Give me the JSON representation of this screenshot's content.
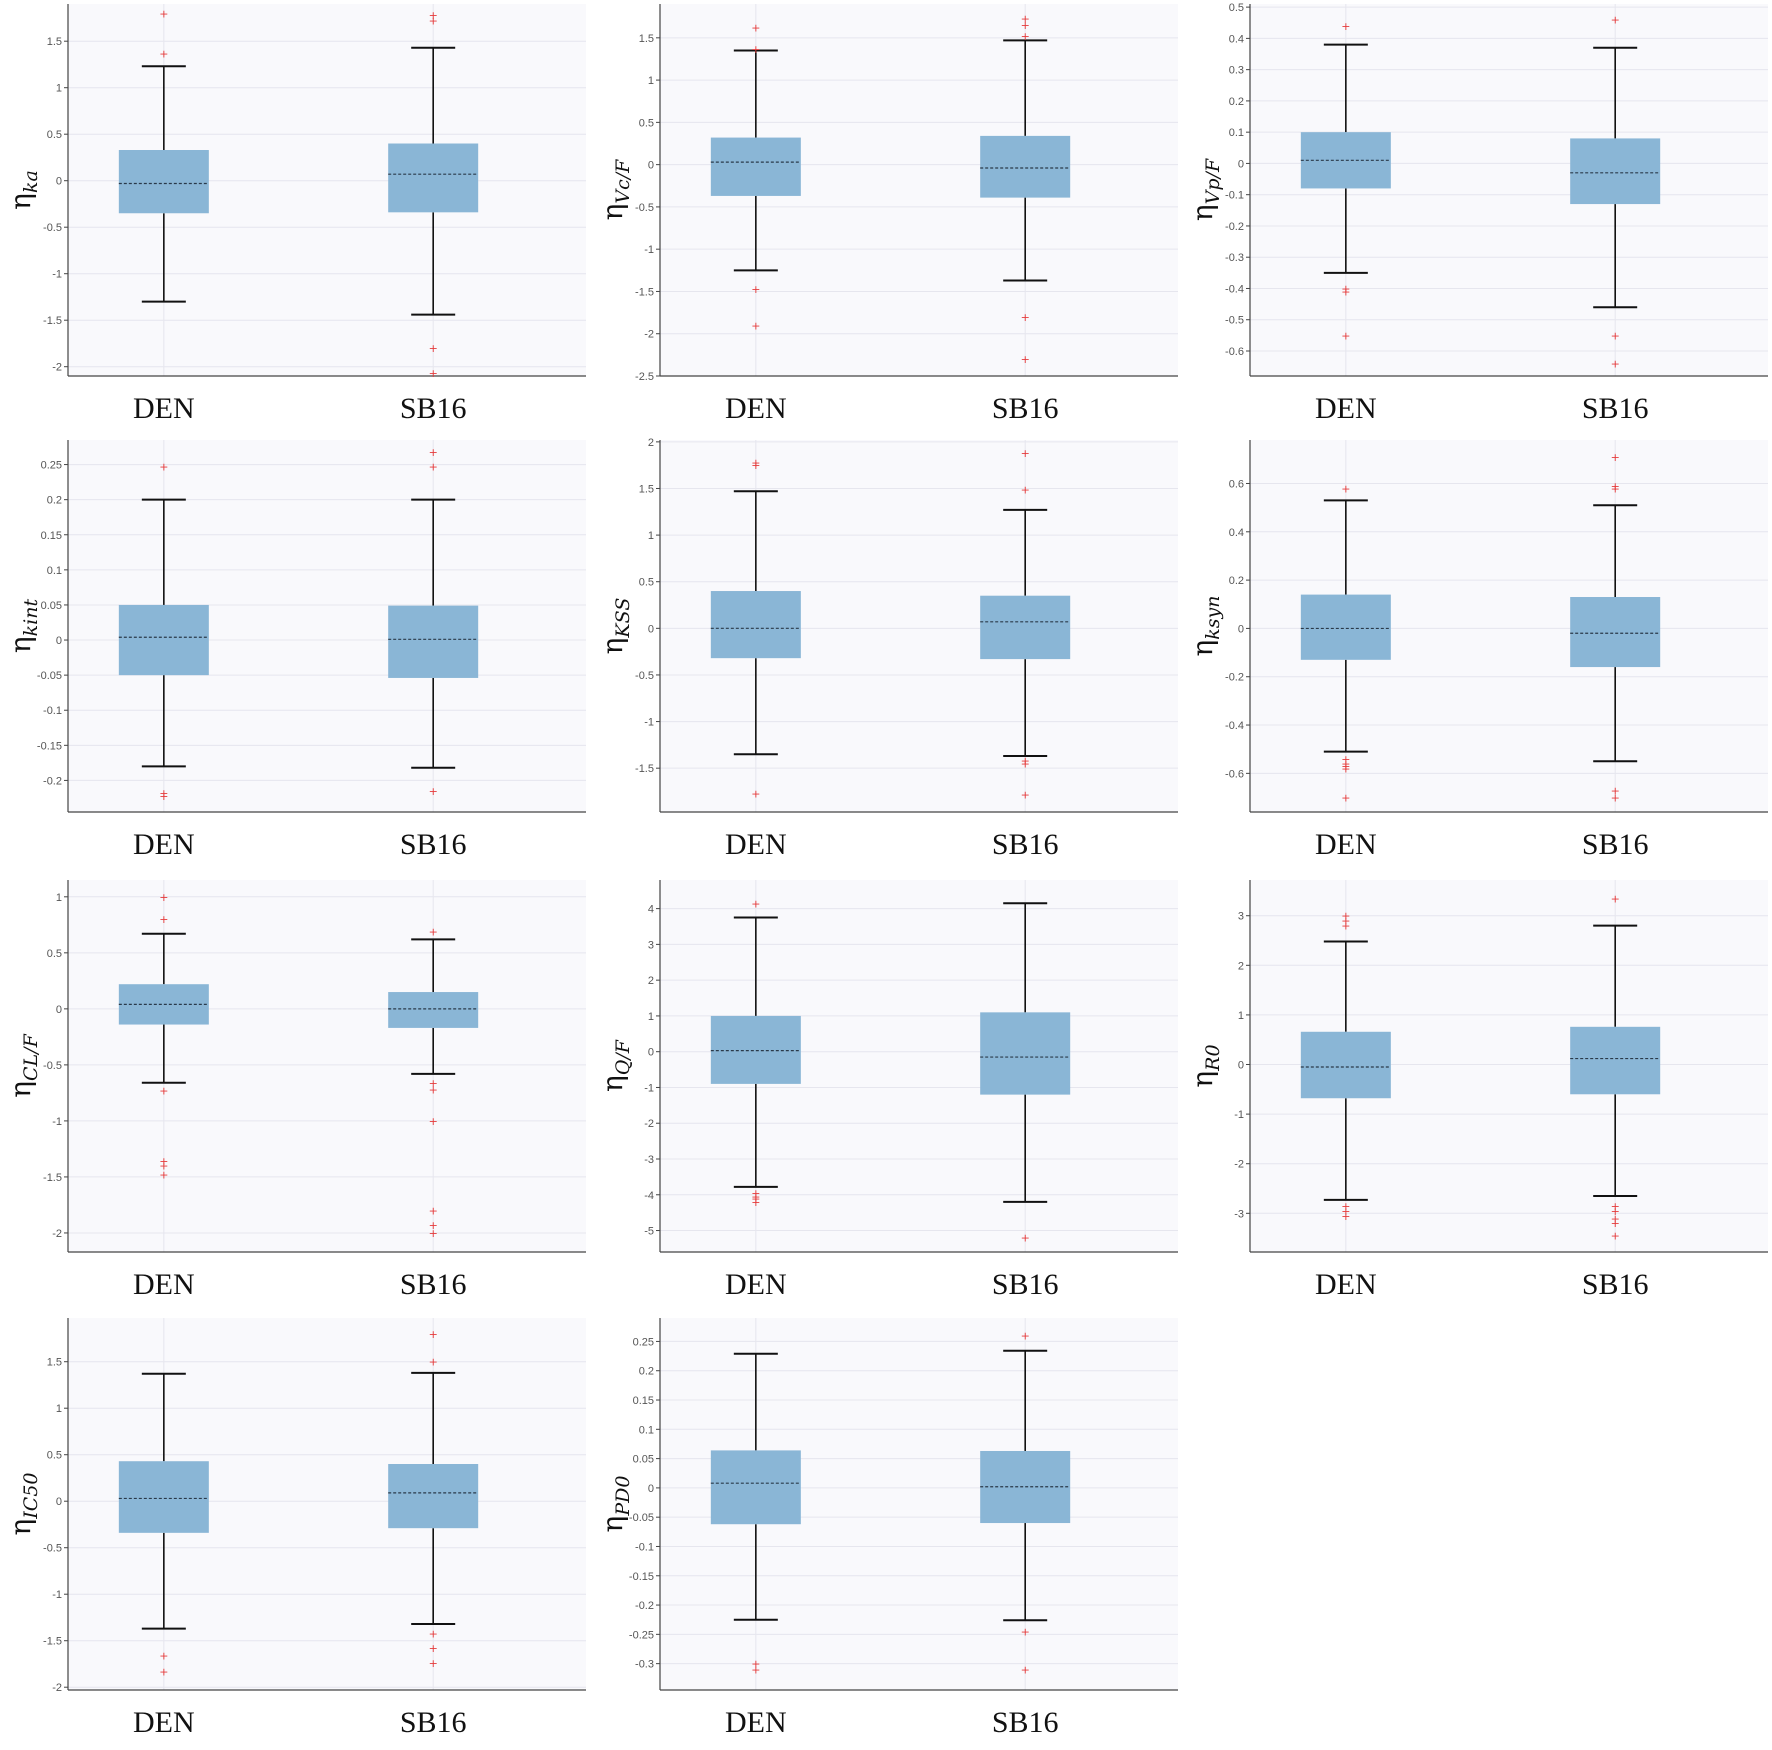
{
  "chart_data": [
    {
      "type": "box",
      "ylabel_base": "η",
      "ylabel_sub": "ka",
      "ticks": [
        -2,
        -1.5,
        -1,
        -0.5,
        0,
        0.5,
        1,
        1.5
      ],
      "ylim": [
        -2.1,
        1.9
      ],
      "categories": [
        "DEN",
        "SB16"
      ],
      "boxes": [
        {
          "whisker_low": -1.3,
          "q1": -0.35,
          "median": -0.03,
          "q3": 0.33,
          "whisker_high": 1.23,
          "outliers": [
            1.37,
            1.8
          ]
        },
        {
          "whisker_low": -1.44,
          "q1": -0.34,
          "median": 0.07,
          "q3": 0.4,
          "whisker_high": 1.43,
          "outliers": [
            -1.8,
            -2.07,
            1.72,
            1.78
          ]
        }
      ]
    },
    {
      "type": "box",
      "ylabel_base": "η",
      "ylabel_sub": "Vc/F",
      "ticks": [
        -2.5,
        -2,
        -1.5,
        -1,
        -0.5,
        0,
        0.5,
        1,
        1.5
      ],
      "ylim": [
        -2.5,
        1.9
      ],
      "categories": [
        "DEN",
        "SB16"
      ],
      "boxes": [
        {
          "whisker_low": -1.25,
          "q1": -0.37,
          "median": 0.03,
          "q3": 0.32,
          "whisker_high": 1.35,
          "outliers": [
            -1.47,
            -1.9,
            1.37,
            1.62
          ]
        },
        {
          "whisker_low": -1.37,
          "q1": -0.39,
          "median": -0.04,
          "q3": 0.34,
          "whisker_high": 1.47,
          "outliers": [
            -1.8,
            -2.3,
            1.52,
            1.65,
            1.73
          ]
        }
      ]
    },
    {
      "type": "box",
      "ylabel_base": "η",
      "ylabel_sub": "Vp/F",
      "ticks": [
        -0.6,
        -0.5,
        -0.4,
        -0.3,
        -0.2,
        -0.1,
        0,
        0.1,
        0.2,
        0.3,
        0.4,
        0.5
      ],
      "ylim": [
        -0.68,
        0.51
      ],
      "categories": [
        "DEN",
        "SB16"
      ],
      "boxes": [
        {
          "whisker_low": -0.35,
          "q1": -0.08,
          "median": 0.01,
          "q3": 0.1,
          "whisker_high": 0.38,
          "outliers": [
            -0.4,
            -0.41,
            -0.55,
            0.44
          ]
        },
        {
          "whisker_low": -0.46,
          "q1": -0.13,
          "median": -0.03,
          "q3": 0.08,
          "whisker_high": 0.37,
          "outliers": [
            -0.55,
            -0.64,
            0.46
          ]
        }
      ]
    },
    {
      "type": "box",
      "ylabel_base": "η",
      "ylabel_sub": "kint",
      "ticks": [
        -0.2,
        -0.15,
        -0.1,
        -0.05,
        0,
        0.05,
        0.1,
        0.15,
        0.2,
        0.25
      ],
      "ylim": [
        -0.245,
        0.285
      ],
      "categories": [
        "DEN",
        "SB16"
      ],
      "boxes": [
        {
          "whisker_low": -0.18,
          "q1": -0.05,
          "median": 0.004,
          "q3": 0.05,
          "whisker_high": 0.2,
          "outliers": [
            -0.218,
            -0.222,
            0.247
          ]
        },
        {
          "whisker_low": -0.182,
          "q1": -0.054,
          "median": 0.001,
          "q3": 0.049,
          "whisker_high": 0.2,
          "outliers": [
            -0.215,
            0.247,
            0.268
          ]
        }
      ]
    },
    {
      "type": "box",
      "ylabel_base": "η",
      "ylabel_sub": "KSS",
      "ticks": [
        -1.5,
        -1,
        -0.5,
        0,
        0.5,
        1,
        1.5,
        2
      ],
      "ylim": [
        -1.97,
        2.02
      ],
      "categories": [
        "DEN",
        "SB16"
      ],
      "boxes": [
        {
          "whisker_low": -1.35,
          "q1": -0.32,
          "median": 0.0,
          "q3": 0.4,
          "whisker_high": 1.47,
          "outliers": [
            -1.77,
            1.75,
            1.78
          ]
        },
        {
          "whisker_low": -1.37,
          "q1": -0.33,
          "median": 0.07,
          "q3": 0.35,
          "whisker_high": 1.27,
          "outliers": [
            -1.42,
            -1.45,
            -1.78,
            1.49,
            1.88
          ]
        }
      ]
    },
    {
      "type": "box",
      "ylabel_base": "η",
      "ylabel_sub": "ksyn",
      "ticks": [
        -0.6,
        -0.4,
        -0.2,
        0,
        0.2,
        0.4,
        0.6
      ],
      "ylim": [
        -0.76,
        0.78
      ],
      "categories": [
        "DEN",
        "SB16"
      ],
      "boxes": [
        {
          "whisker_low": -0.51,
          "q1": -0.13,
          "median": 0.0,
          "q3": 0.14,
          "whisker_high": 0.53,
          "outliers": [
            -0.54,
            -0.56,
            -0.57,
            -0.58,
            -0.7,
            0.58
          ]
        },
        {
          "whisker_low": -0.55,
          "q1": -0.16,
          "median": -0.02,
          "q3": 0.13,
          "whisker_high": 0.51,
          "outliers": [
            -0.67,
            -0.7,
            0.58,
            0.59,
            0.71
          ]
        }
      ]
    },
    {
      "type": "box",
      "ylabel_base": "η",
      "ylabel_sub": "CL/F",
      "ticks": [
        -2,
        -1.5,
        -1,
        -0.5,
        0,
        0.5,
        1
      ],
      "ylim": [
        -2.17,
        1.15
      ],
      "categories": [
        "DEN",
        "SB16"
      ],
      "boxes": [
        {
          "whisker_low": -0.66,
          "q1": -0.14,
          "median": 0.04,
          "q3": 0.22,
          "whisker_high": 0.67,
          "outliers": [
            -0.73,
            -1.36,
            -1.4,
            -1.48,
            0.8,
            1.0
          ]
        },
        {
          "whisker_low": -0.58,
          "q1": -0.17,
          "median": 0.0,
          "q3": 0.15,
          "whisker_high": 0.62,
          "outliers": [
            -0.66,
            -0.72,
            -1.0,
            -1.8,
            -1.93,
            -2.0,
            0.69
          ]
        }
      ]
    },
    {
      "type": "box",
      "ylabel_base": "η",
      "ylabel_sub": "Q/F",
      "ticks": [
        -5,
        -4,
        -3,
        -2,
        -1,
        0,
        1,
        2,
        3,
        4
      ],
      "ylim": [
        -5.6,
        4.8
      ],
      "categories": [
        "DEN",
        "SB16"
      ],
      "boxes": [
        {
          "whisker_low": -3.78,
          "q1": -0.9,
          "median": 0.03,
          "q3": 1.0,
          "whisker_high": 3.75,
          "outliers": [
            -3.95,
            -4.05,
            -4.1,
            -4.2,
            4.15
          ]
        },
        {
          "whisker_low": -4.2,
          "q1": -1.2,
          "median": -0.15,
          "q3": 1.1,
          "whisker_high": 4.15,
          "outliers": [
            -5.2
          ]
        }
      ]
    },
    {
      "type": "box",
      "ylabel_base": "η",
      "ylabel_sub": "R0",
      "ticks": [
        -3,
        -2,
        -1,
        0,
        1,
        2,
        3
      ],
      "ylim": [
        -3.78,
        3.72
      ],
      "categories": [
        "DEN",
        "SB16"
      ],
      "boxes": [
        {
          "whisker_low": -2.73,
          "q1": -0.68,
          "median": -0.05,
          "q3": 0.66,
          "whisker_high": 2.48,
          "outliers": [
            -2.85,
            -2.95,
            -3.05,
            2.8,
            2.9,
            3.0
          ]
        },
        {
          "whisker_low": -2.65,
          "q1": -0.6,
          "median": 0.12,
          "q3": 0.76,
          "whisker_high": 2.8,
          "outliers": [
            -2.85,
            -2.95,
            -3.1,
            -3.2,
            -3.45,
            3.35
          ]
        }
      ]
    },
    {
      "type": "box",
      "ylabel_base": "η",
      "ylabel_sub": "IC50",
      "ticks": [
        -2,
        -1.5,
        -1,
        -0.5,
        0,
        0.5,
        1,
        1.5
      ],
      "ylim": [
        -2.03,
        1.97
      ],
      "categories": [
        "DEN",
        "SB16"
      ],
      "boxes": [
        {
          "whisker_low": -1.37,
          "q1": -0.34,
          "median": 0.03,
          "q3": 0.43,
          "whisker_high": 1.37,
          "outliers": [
            -1.66,
            -1.83
          ]
        },
        {
          "whisker_low": -1.32,
          "q1": -0.29,
          "median": 0.09,
          "q3": 0.4,
          "whisker_high": 1.38,
          "outliers": [
            -1.42,
            -1.58,
            -1.74,
            1.5,
            1.8
          ]
        }
      ]
    },
    {
      "type": "box",
      "ylabel_base": "η",
      "ylabel_sub": "PD0",
      "ticks": [
        -0.3,
        -0.25,
        -0.2,
        -0.15,
        -0.1,
        -0.05,
        0,
        0.05,
        0.1,
        0.15,
        0.2,
        0.25
      ],
      "ylim": [
        -0.345,
        0.29
      ],
      "categories": [
        "DEN",
        "SB16"
      ],
      "boxes": [
        {
          "whisker_low": -0.225,
          "q1": -0.062,
          "median": 0.008,
          "q3": 0.064,
          "whisker_high": 0.229,
          "outliers": [
            -0.3,
            -0.31
          ]
        },
        {
          "whisker_low": -0.226,
          "q1": -0.06,
          "median": 0.002,
          "q3": 0.063,
          "whisker_high": 0.234,
          "outliers": [
            -0.245,
            -0.31,
            0.26
          ]
        }
      ]
    }
  ]
}
